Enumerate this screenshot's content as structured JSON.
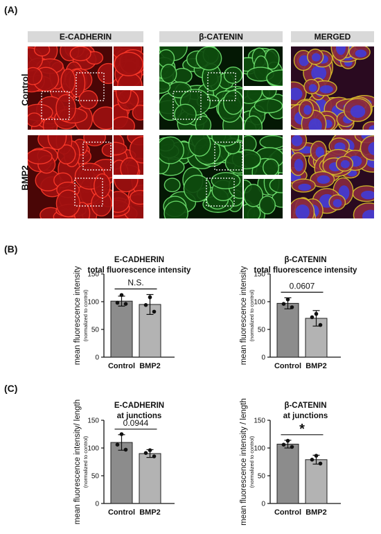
{
  "panels": {
    "a": "(A)",
    "b": "(B)",
    "c": "(C)"
  },
  "micro": {
    "headers": [
      "E-CADHERIN",
      "β-CATENIN",
      "MERGED"
    ],
    "rows": [
      "Control",
      "BMP2"
    ],
    "colors": {
      "red": "#c81010",
      "green": "#1f9e1f",
      "blue": "#3d3de0",
      "yellow": "#d9c12a"
    }
  },
  "chart_data": [
    {
      "type": "bar",
      "panel": "B",
      "title": "E-CADHERIN",
      "subtitle": "total fluorescence intensity",
      "ylabel": "mean fluorescence intensity",
      "ylabel_sub": "(normalized to control)",
      "categories": [
        "Control",
        "BMP2"
      ],
      "values": [
        101,
        95
      ],
      "errors": [
        9,
        18
      ],
      "points": [
        [
          112,
          98,
          96
        ],
        [
          108,
          94,
          82
        ]
      ],
      "ylim": [
        0,
        150
      ],
      "yticks": [
        0,
        50,
        100,
        150
      ],
      "annotation": "N.S.",
      "bar_colors": [
        "#8c8c8c",
        "#b3b3b3"
      ]
    },
    {
      "type": "bar",
      "panel": "B",
      "title": "β-CATENIN",
      "subtitle": "total fluorescence intensity",
      "ylabel": "mean fluorescence intensity",
      "ylabel_sub": "(normalized to control)",
      "categories": [
        "Control",
        "BMP2"
      ],
      "values": [
        97,
        70
      ],
      "errors": [
        10,
        14
      ],
      "points": [
        [
          104,
          96,
          90
        ],
        [
          78,
          72,
          58
        ]
      ],
      "ylim": [
        0,
        150
      ],
      "yticks": [
        0,
        50,
        100,
        150
      ],
      "annotation": "0.0607",
      "bar_colors": [
        "#8c8c8c",
        "#b3b3b3"
      ]
    },
    {
      "type": "bar",
      "panel": "C",
      "title": "E-CADHERIN",
      "subtitle": "at junctions",
      "ylabel": "mean fluorescence intensity/ length",
      "ylabel_sub": "(normalized to control)",
      "categories": [
        "Control",
        "BMP2"
      ],
      "values": [
        110,
        90
      ],
      "errors": [
        14,
        7
      ],
      "points": [
        [
          125,
          106,
          97
        ],
        [
          96,
          91,
          85
        ]
      ],
      "ylim": [
        0,
        150
      ],
      "yticks": [
        0,
        50,
        100,
        150
      ],
      "annotation": "0.0944",
      "bar_colors": [
        "#8c8c8c",
        "#b3b3b3"
      ]
    },
    {
      "type": "bar",
      "panel": "C",
      "title": "β-CATENIN",
      "subtitle": "at junctions",
      "ylabel": "mean fluorescence intensity / length",
      "ylabel_sub": "(normalized to control)",
      "categories": [
        "Control",
        "BMP2"
      ],
      "values": [
        107,
        79
      ],
      "errors": [
        7,
        8
      ],
      "points": [
        [
          113,
          106,
          102
        ],
        [
          86,
          79,
          72
        ]
      ],
      "ylim": [
        0,
        150
      ],
      "yticks": [
        0,
        50,
        100,
        150
      ],
      "annotation": "*",
      "bar_colors": [
        "#8c8c8c",
        "#b3b3b3"
      ]
    }
  ]
}
